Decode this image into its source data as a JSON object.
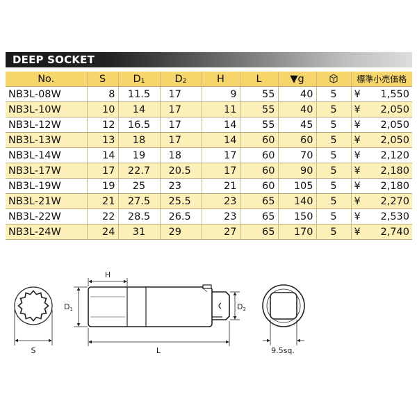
{
  "title": "DEEP SOCKET",
  "table": {
    "header": [
      "No.",
      "S",
      [
        "D",
        "1"
      ],
      [
        "D",
        "2"
      ],
      "H",
      "L",
      "▼g",
      "",
      "標準小売価格"
    ],
    "rows": [
      [
        "NB3L-08W",
        "8",
        "11.5",
        "17",
        "9",
        "55",
        "40",
        "5",
        "¥",
        "1,550"
      ],
      [
        "NB3L-10W",
        "10",
        "14",
        "17",
        "11",
        "55",
        "40",
        "5",
        "¥",
        "2,050"
      ],
      [
        "NB3L-12W",
        "12",
        "16.5",
        "17",
        "14",
        "55",
        "45",
        "5",
        "¥",
        "2,050"
      ],
      [
        "NB3L-13W",
        "13",
        "18",
        "17",
        "14",
        "60",
        "60",
        "5",
        "¥",
        "2,050"
      ],
      [
        "NB3L-14W",
        "14",
        "19",
        "18",
        "17",
        "60",
        "70",
        "5",
        "¥",
        "2,120"
      ],
      [
        "NB3L-17W",
        "17",
        "22.7",
        "20.5",
        "17",
        "60",
        "90",
        "5",
        "¥",
        "2,180"
      ],
      [
        "NB3L-19W",
        "19",
        "25",
        "23",
        "21",
        "60",
        "105",
        "5",
        "¥",
        "2,180"
      ],
      [
        "NB3L-21W",
        "21",
        "27.5",
        "25.5",
        "23",
        "65",
        "140",
        "5",
        "¥",
        "2,270"
      ],
      [
        "NB3L-22W",
        "22",
        "28.5",
        "26.5",
        "23",
        "65",
        "150",
        "5",
        "¥",
        "2,530"
      ],
      [
        "NB3L-24W",
        "24",
        "31",
        "29",
        "27",
        "65",
        "170",
        "5",
        "¥",
        "2,740"
      ]
    ]
  },
  "diagram": {
    "h": "H",
    "d1": [
      "D",
      "1"
    ],
    "l": "L",
    "d2": [
      "D",
      "2"
    ],
    "s": "S",
    "sq": "9.5sq."
  }
}
